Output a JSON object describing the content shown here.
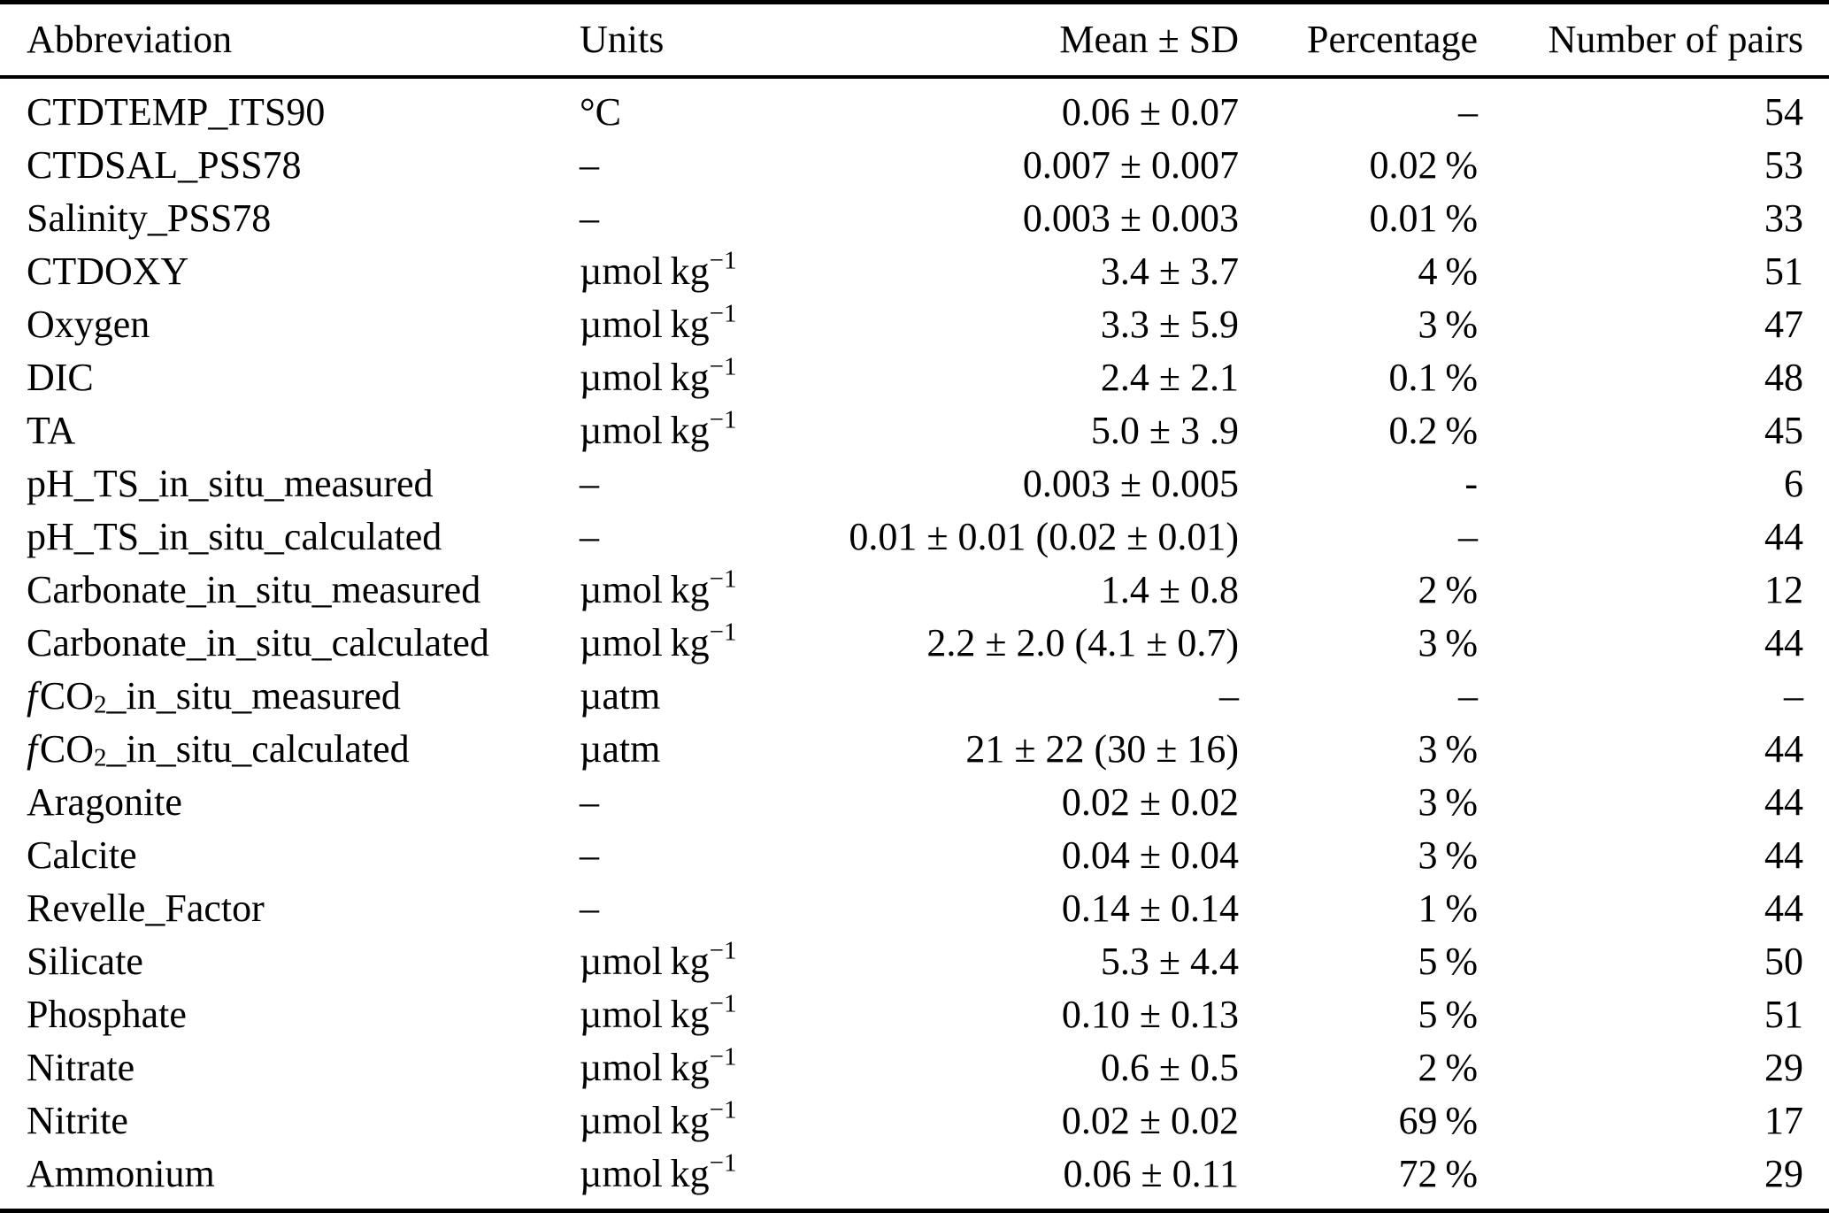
{
  "colors": {
    "background": "#ffffff",
    "text": "#000000",
    "rule": "#000000"
  },
  "table": {
    "columns": [
      {
        "label": "Abbreviation"
      },
      {
        "label": "Units"
      },
      {
        "label": "Mean ± SD"
      },
      {
        "label": "Percentage"
      },
      {
        "label": "Number of pairs"
      }
    ],
    "rows": [
      {
        "abbr": "CTDTEMP_ITS90",
        "units": "°C",
        "mean_sd": "0.06 ± 0.07",
        "percentage": "–",
        "pairs": "54"
      },
      {
        "abbr": "CTDSAL_PSS78",
        "units": "–",
        "mean_sd": "0.007 ± 0.007",
        "percentage": "0.02 %",
        "pairs": "53"
      },
      {
        "abbr": "Salinity_PSS78",
        "units": "–",
        "mean_sd": "0.003 ± 0.003",
        "percentage": "0.01 %",
        "pairs": "33"
      },
      {
        "abbr": "CTDOXY",
        "units": [
          {
            "t": "µmol kg"
          },
          {
            "t": "−1",
            "s": "sup"
          }
        ],
        "mean_sd": "3.4 ± 3.7",
        "percentage": "4 %",
        "pairs": "51"
      },
      {
        "abbr": "Oxygen",
        "units": [
          {
            "t": "µmol kg"
          },
          {
            "t": "−1",
            "s": "sup"
          }
        ],
        "mean_sd": "3.3 ± 5.9",
        "percentage": "3 %",
        "pairs": "47"
      },
      {
        "abbr": "DIC",
        "units": [
          {
            "t": "µmol kg"
          },
          {
            "t": "−1",
            "s": "sup"
          }
        ],
        "mean_sd": "2.4 ± 2.1",
        "percentage": "0.1 %",
        "pairs": "48"
      },
      {
        "abbr": "TA",
        "units": [
          {
            "t": "µmol kg"
          },
          {
            "t": "−1",
            "s": "sup"
          }
        ],
        "mean_sd": "5.0 ± 3 .9",
        "percentage": "0.2 %",
        "pairs": "45"
      },
      {
        "abbr": "pH_TS_in_situ_measured",
        "units": "–",
        "mean_sd": "0.003 ± 0.005",
        "percentage": "-",
        "pairs": "6"
      },
      {
        "abbr": "pH_TS_in_situ_calculated",
        "units": "–",
        "mean_sd": "0.01 ± 0.01 (0.02 ± 0.01)",
        "percentage": "–",
        "pairs": "44"
      },
      {
        "abbr": "Carbonate_in_situ_measured",
        "units": [
          {
            "t": "µmol kg"
          },
          {
            "t": "−1",
            "s": "sup"
          }
        ],
        "mean_sd": "1.4 ± 0.8",
        "percentage": "2 %",
        "pairs": "12"
      },
      {
        "abbr": "Carbonate_in_situ_calculated",
        "units": [
          {
            "t": "µmol kg"
          },
          {
            "t": "−1",
            "s": "sup"
          }
        ],
        "mean_sd": "2.2 ± 2.0 (4.1 ± 0.7)",
        "percentage": "3 %",
        "pairs": "44"
      },
      {
        "abbr": [
          {
            "t": "f",
            "s": "i"
          },
          {
            "t": "CO"
          },
          {
            "t": "2",
            "s": "sub"
          },
          {
            "t": "_in_situ_measured"
          }
        ],
        "units": "µatm",
        "mean_sd": "–",
        "percentage": "–",
        "pairs": "–"
      },
      {
        "abbr": [
          {
            "t": "f",
            "s": "i"
          },
          {
            "t": "CO"
          },
          {
            "t": "2",
            "s": "sub"
          },
          {
            "t": "_in_situ_calculated"
          }
        ],
        "units": "µatm",
        "mean_sd": "21 ± 22 (30 ± 16)",
        "percentage": "3 %",
        "pairs": "44"
      },
      {
        "abbr": "Aragonite",
        "units": "–",
        "mean_sd": "0.02 ± 0.02",
        "percentage": "3 %",
        "pairs": "44"
      },
      {
        "abbr": "Calcite",
        "units": "–",
        "mean_sd": "0.04 ± 0.04",
        "percentage": "3 %",
        "pairs": "44"
      },
      {
        "abbr": "Revelle_Factor",
        "units": "–",
        "mean_sd": "0.14 ± 0.14",
        "percentage": "1 %",
        "pairs": "44"
      },
      {
        "abbr": "Silicate",
        "units": [
          {
            "t": "µmol kg"
          },
          {
            "t": "−1",
            "s": "sup"
          }
        ],
        "mean_sd": "5.3 ± 4.4",
        "percentage": "5 %",
        "pairs": "50"
      },
      {
        "abbr": "Phosphate",
        "units": [
          {
            "t": "µmol kg"
          },
          {
            "t": "−1",
            "s": "sup"
          }
        ],
        "mean_sd": "0.10 ± 0.13",
        "percentage": "5 %",
        "pairs": "51"
      },
      {
        "abbr": "Nitrate",
        "units": [
          {
            "t": "µmol kg"
          },
          {
            "t": "−1",
            "s": "sup"
          }
        ],
        "mean_sd": "0.6 ± 0.5",
        "percentage": "2 %",
        "pairs": "29"
      },
      {
        "abbr": "Nitrite",
        "units": [
          {
            "t": "µmol kg"
          },
          {
            "t": "−1",
            "s": "sup"
          }
        ],
        "mean_sd": "0.02 ± 0.02",
        "percentage": "69 %",
        "pairs": "17"
      },
      {
        "abbr": "Ammonium",
        "units": [
          {
            "t": "µmol kg"
          },
          {
            "t": "−1",
            "s": "sup"
          }
        ],
        "mean_sd": "0.06 ± 0.11",
        "percentage": "72 %",
        "pairs": "29"
      }
    ]
  }
}
